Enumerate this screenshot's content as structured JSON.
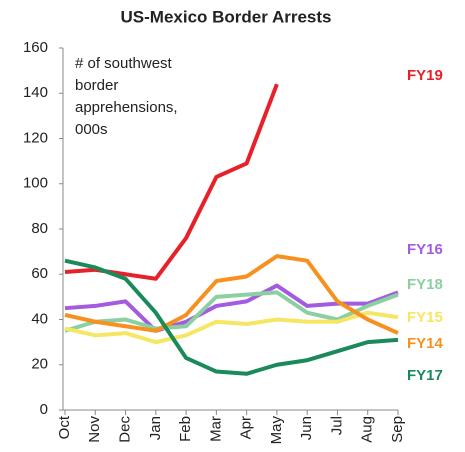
{
  "chart_data": {
    "type": "line",
    "title": "US-Mexico Border Arrests",
    "annotation_lines": [
      "# of southwest",
      "border",
      "apprehensions,",
      "000s"
    ],
    "categories": [
      "Oct",
      "Nov",
      "Dec",
      "Jan",
      "Feb",
      "Mar",
      "Apr",
      "May",
      "Jun",
      "Jul",
      "Aug",
      "Sep"
    ],
    "ylim": [
      0,
      160
    ],
    "yticks": [
      0,
      20,
      40,
      60,
      80,
      100,
      120,
      140,
      160
    ],
    "series": [
      {
        "name": "FY19",
        "color": "#e8202a",
        "values": [
          61,
          62,
          60,
          58,
          76,
          103,
          109,
          144,
          null,
          null,
          null,
          null
        ]
      },
      {
        "name": "FY16",
        "color": "#a35be0",
        "values": [
          45,
          46,
          48,
          35,
          39,
          46,
          48,
          55,
          46,
          47,
          47,
          52
        ]
      },
      {
        "name": "FY18",
        "color": "#8ccfa0",
        "values": [
          35,
          39,
          40,
          36,
          37,
          50,
          51,
          52,
          43,
          40,
          46,
          51
        ]
      },
      {
        "name": "FY15",
        "color": "#f5e663",
        "values": [
          36,
          33,
          34,
          30,
          33,
          39,
          38,
          40,
          39,
          39,
          43,
          41
        ]
      },
      {
        "name": "FY14",
        "color": "#f7901e",
        "values": [
          42,
          39,
          37,
          35,
          42,
          57,
          59,
          68,
          66,
          48,
          40,
          34
        ]
      },
      {
        "name": "FY17",
        "color": "#1a8a5a",
        "values": [
          66,
          63,
          58,
          43,
          23,
          17,
          16,
          20,
          22,
          26,
          30,
          31
        ]
      }
    ]
  }
}
